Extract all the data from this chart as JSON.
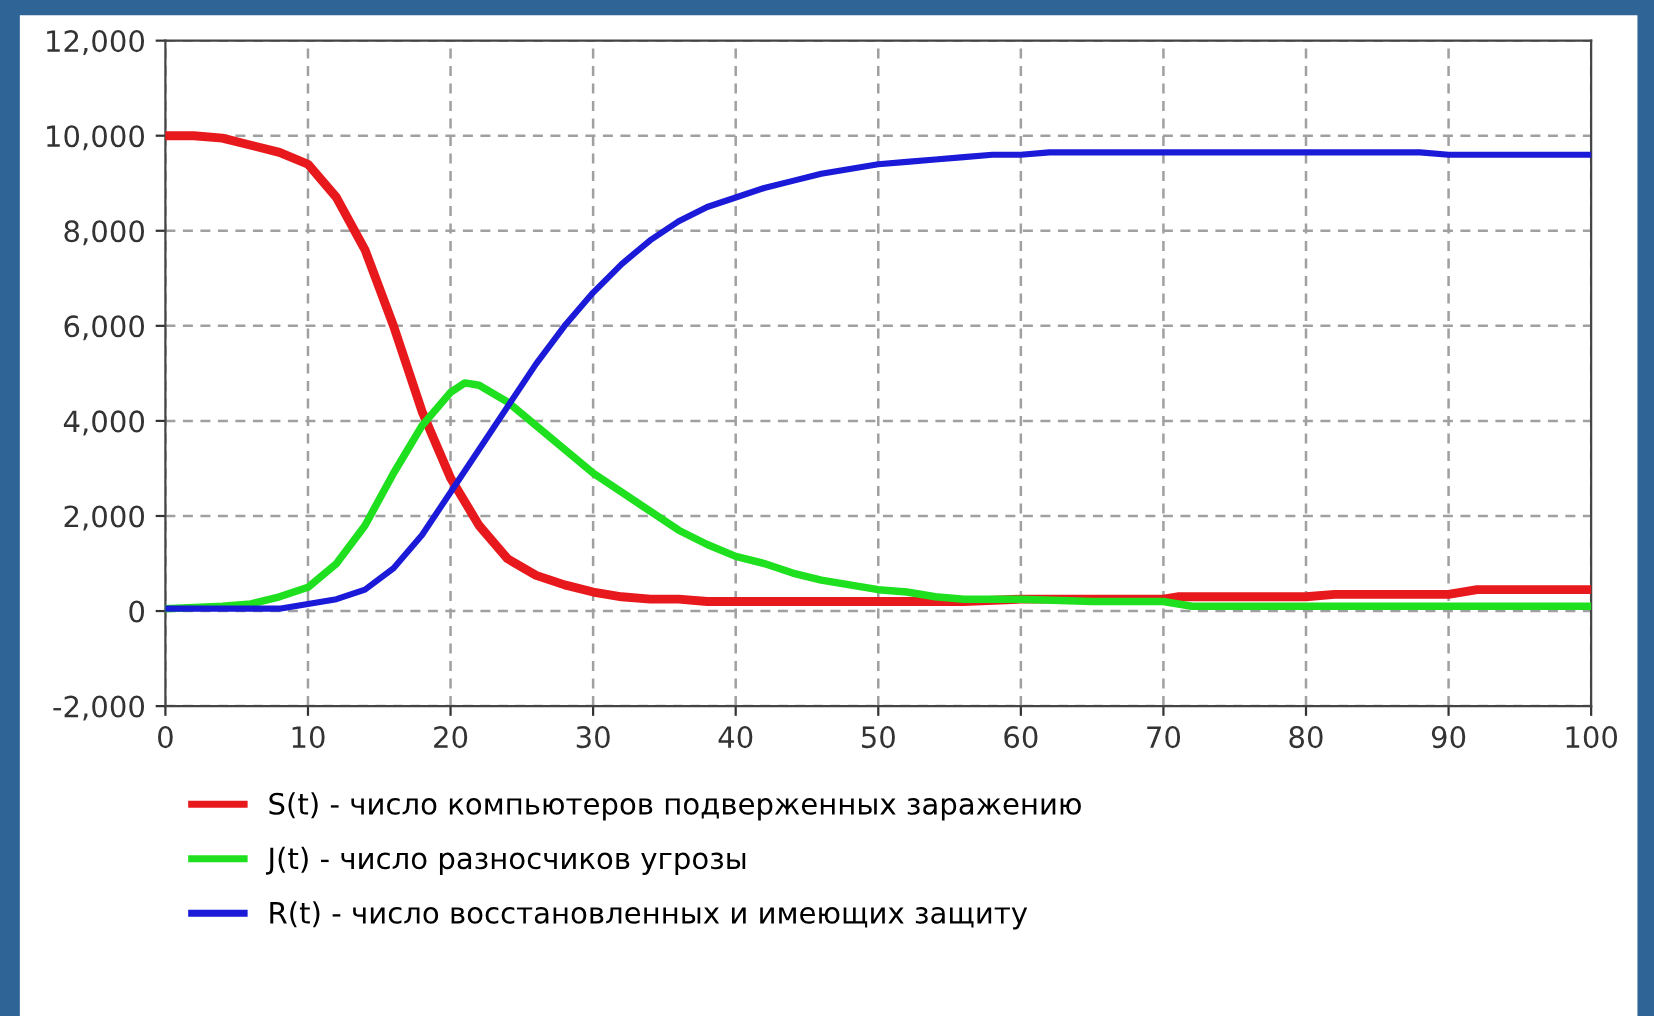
{
  "chart_data": {
    "type": "line",
    "xlim": [
      0,
      100
    ],
    "xticks": [
      0,
      10,
      20,
      30,
      40,
      50,
      60,
      70,
      80,
      90,
      100
    ],
    "ylim": [
      -2000,
      12000
    ],
    "yticks": [
      {
        "value": -2000,
        "label": "-2,000"
      },
      0,
      {
        "value": 2000,
        "label": "2,000"
      },
      {
        "value": 4000,
        "label": "4,000"
      },
      {
        "value": 6000,
        "label": "6,000"
      },
      {
        "value": 8000,
        "label": "8,000"
      },
      {
        "value": 10000,
        "label": "10,000"
      },
      {
        "value": 12000,
        "label": "12,000"
      }
    ],
    "grid": true,
    "legend": "bottom",
    "line_style": "solid",
    "marker": "none",
    "series": [
      {
        "name": "S(t) - число компьютеров подверженных заражению",
        "color": "#e8191c",
        "x": [
          0,
          2,
          4,
          6,
          8,
          10,
          12,
          14,
          16,
          18,
          20,
          22,
          24,
          26,
          28,
          30,
          32,
          34,
          36,
          38,
          40,
          50,
          56,
          60,
          70,
          71,
          80,
          82,
          90,
          92,
          100
        ],
        "values": [
          10000,
          10000,
          9950,
          9800,
          9650,
          9400,
          8700,
          7600,
          6000,
          4200,
          2800,
          1800,
          1100,
          750,
          550,
          400,
          300,
          250,
          250,
          200,
          200,
          200,
          200,
          250,
          250,
          300,
          300,
          350,
          350,
          450,
          450
        ]
      },
      {
        "name": "J(t) - число разносчиков угрозы",
        "color": "#1fe01f",
        "x": [
          0,
          4,
          6,
          8,
          10,
          12,
          14,
          16,
          18,
          20,
          21,
          22,
          24,
          26,
          28,
          30,
          32,
          34,
          36,
          38,
          40,
          42,
          44,
          46,
          48,
          50,
          52,
          54,
          56,
          60,
          65,
          70,
          72,
          80,
          90,
          100
        ],
        "values": [
          50,
          100,
          150,
          300,
          500,
          1000,
          1800,
          2900,
          3900,
          4600,
          4800,
          4750,
          4400,
          3900,
          3400,
          2900,
          2500,
          2100,
          1700,
          1400,
          1150,
          1000,
          800,
          650,
          550,
          450,
          400,
          300,
          250,
          250,
          200,
          200,
          100,
          100,
          100,
          100
        ]
      },
      {
        "name": "R(t) - число восстановленных и имеющих защиту",
        "color": "#1a1ad8",
        "x": [
          0,
          4,
          8,
          10,
          12,
          14,
          16,
          18,
          20,
          22,
          24,
          26,
          28,
          30,
          32,
          34,
          36,
          38,
          40,
          42,
          44,
          46,
          48,
          50,
          52,
          54,
          56,
          58,
          60,
          62,
          70,
          80,
          88,
          90,
          100
        ],
        "values": [
          50,
          50,
          50,
          150,
          250,
          450,
          900,
          1600,
          2500,
          3400,
          4300,
          5200,
          6000,
          6700,
          7300,
          7800,
          8200,
          8500,
          8700,
          8900,
          9050,
          9200,
          9300,
          9400,
          9450,
          9500,
          9550,
          9600,
          9600,
          9650,
          9650,
          9650,
          9650,
          9600,
          9600
        ]
      }
    ]
  }
}
